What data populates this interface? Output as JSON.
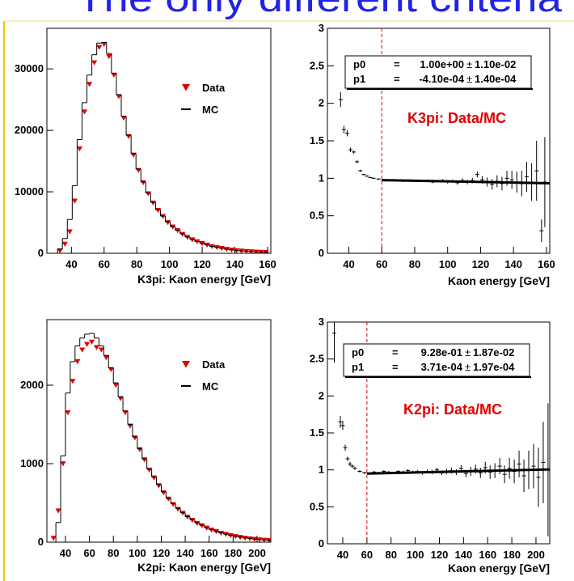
{
  "slide_title": "The only different criteria",
  "chart_data": [
    {
      "type": "distribution",
      "x_label": "K3pi: Kaon energy [GeV]",
      "xlim": [
        25,
        162
      ],
      "xticks": [
        40,
        60,
        80,
        100,
        120,
        140,
        160
      ],
      "ylim": [
        0,
        36600
      ],
      "yticks": [
        0,
        10000,
        20000,
        30000
      ],
      "x": [
        33,
        36,
        39,
        42,
        45,
        48,
        51,
        54,
        57,
        60,
        63,
        66,
        69,
        72,
        75,
        78,
        81,
        84,
        87,
        90,
        93,
        96,
        99,
        102,
        105,
        108,
        111,
        114,
        117,
        120,
        123,
        126,
        129,
        132,
        135,
        138,
        141,
        144,
        147,
        150,
        153,
        156,
        159
      ],
      "series": [
        {
          "name": "Data",
          "color": "#e00000",
          "style": "marker",
          "values": [
            400,
            1500,
            3500,
            8500,
            17000,
            23000,
            27500,
            31000,
            33500,
            34000,
            32000,
            29000,
            25500,
            22000,
            19000,
            16000,
            13500,
            11500,
            9700,
            8200,
            7000,
            6000,
            5000,
            4300,
            3700,
            3100,
            2600,
            2200,
            1900,
            1600,
            1350,
            1100,
            950,
            800,
            650,
            550,
            450,
            380,
            320,
            260,
            220,
            180,
            150
          ]
        },
        {
          "name": "MC",
          "color": "#000000",
          "style": "step",
          "values": [
            700,
            2400,
            5500,
            11000,
            18500,
            24500,
            29000,
            32300,
            34200,
            34300,
            32500,
            29300,
            25800,
            22300,
            19200,
            16200,
            13700,
            11600,
            9800,
            8300,
            7100,
            6050,
            5100,
            4350,
            3750,
            3150,
            2650,
            2250,
            1920,
            1620,
            1370,
            1120,
            960,
            810,
            660,
            560,
            460,
            385,
            325,
            265,
            225,
            185,
            155
          ]
        }
      ]
    },
    {
      "type": "ratio",
      "x_label": "Kaon energy [GeV]",
      "annotation": "K3pi: Data/MC",
      "annotation_color": "#e00000",
      "xlim": [
        27,
        162
      ],
      "xticks": [
        40,
        60,
        80,
        100,
        120,
        140,
        160
      ],
      "ylim": [
        0,
        3
      ],
      "yticks": [
        0,
        0.5,
        1,
        1.5,
        2,
        2.5,
        3
      ],
      "cut": 60,
      "cut_color": "#e00000",
      "fit": {
        "separator": "=",
        "plus_minus": "±",
        "params": [
          {
            "name": "p0",
            "value": {
              "value": 1.0,
              "label": "1.00e+00"
            },
            "error": {
              "value": 0.011,
              "label": "1.10e-02"
            }
          },
          {
            "name": "p1",
            "value": {
              "value": -0.00041,
              "label": "-4.10e-04"
            },
            "error": {
              "value": 0.00014,
              "label": "1.40e-04"
            }
          }
        ]
      },
      "x": [
        35,
        37,
        39,
        41,
        43,
        45,
        47,
        49,
        51,
        53,
        55,
        58,
        61,
        64,
        67,
        70,
        73,
        76,
        79,
        82,
        85,
        88,
        91,
        94,
        97,
        100,
        103,
        106,
        109,
        112,
        115,
        118,
        121,
        124,
        127,
        130,
        133,
        136,
        139,
        142,
        145,
        148,
        151,
        154,
        157,
        159
      ],
      "values": [
        2.05,
        1.65,
        1.6,
        1.38,
        1.35,
        1.22,
        1.1,
        1.05,
        1.03,
        1.01,
        1.0,
        0.99,
        0.98,
        0.97,
        0.98,
        0.97,
        0.96,
        0.97,
        0.96,
        0.97,
        0.96,
        0.97,
        0.95,
        0.96,
        0.97,
        0.95,
        0.96,
        0.94,
        0.97,
        0.95,
        0.97,
        1.05,
        0.98,
        0.95,
        0.92,
        0.96,
        0.93,
        1.0,
        0.98,
        0.95,
        0.93,
        1.02,
        0.95,
        1.1,
        0.3,
        0.95
      ],
      "errors": [
        0.1,
        0.05,
        0.04,
        0.03,
        0.02,
        0.02,
        0.015,
        0.01,
        0.01,
        0.01,
        0.01,
        0.01,
        0.01,
        0.01,
        0.01,
        0.01,
        0.01,
        0.01,
        0.01,
        0.01,
        0.01,
        0.015,
        0.015,
        0.015,
        0.02,
        0.02,
        0.02,
        0.025,
        0.03,
        0.03,
        0.035,
        0.04,
        0.05,
        0.06,
        0.07,
        0.08,
        0.09,
        0.1,
        0.12,
        0.14,
        0.17,
        0.2,
        0.25,
        0.4,
        0.15,
        0.6
      ]
    },
    {
      "type": "distribution",
      "x_label": "K2pi: Kaon energy [GeV]",
      "xlim": [
        24.5,
        211.5
      ],
      "xticks": [
        40,
        60,
        80,
        100,
        120,
        140,
        160,
        180,
        200
      ],
      "ylim": [
        0,
        2835
      ],
      "yticks": [
        0,
        1000,
        2000
      ],
      "x": [
        30,
        34,
        38,
        42,
        46,
        50,
        54,
        58,
        62,
        66,
        70,
        74,
        78,
        82,
        86,
        90,
        94,
        98,
        102,
        106,
        110,
        114,
        118,
        122,
        126,
        130,
        134,
        138,
        142,
        146,
        150,
        154,
        158,
        162,
        166,
        170,
        174,
        178,
        182,
        186,
        190,
        194,
        198,
        202,
        206,
        210
      ],
      "series": [
        {
          "name": "Data",
          "color": "#e00000",
          "style": "marker",
          "values": [
            50,
            400,
            1000,
            1650,
            2050,
            2300,
            2450,
            2520,
            2550,
            2480,
            2450,
            2350,
            2200,
            2000,
            1830,
            1650,
            1480,
            1330,
            1180,
            1050,
            920,
            820,
            720,
            630,
            550,
            480,
            420,
            370,
            320,
            280,
            240,
            210,
            180,
            155,
            135,
            115,
            100,
            85,
            72,
            62,
            52,
            44,
            37,
            31,
            26,
            22
          ]
        },
        {
          "name": "MC",
          "color": "#000000",
          "style": "step",
          "values": [
            0,
            250,
            1100,
            1900,
            2300,
            2500,
            2600,
            2650,
            2660,
            2600,
            2500,
            2380,
            2220,
            2030,
            1850,
            1670,
            1500,
            1340,
            1190,
            1060,
            930,
            830,
            730,
            640,
            560,
            490,
            430,
            375,
            325,
            285,
            245,
            215,
            185,
            160,
            138,
            118,
            102,
            88,
            75,
            64,
            54,
            46,
            39,
            33,
            28,
            24
          ]
        }
      ]
    },
    {
      "type": "ratio",
      "x_label": "Kaon energy [GeV]",
      "annotation": "K2pi: Data/MC",
      "annotation_color": "#e00000",
      "xlim": [
        27.3,
        211.4
      ],
      "xticks": [
        40,
        60,
        80,
        100,
        120,
        140,
        160,
        180,
        200
      ],
      "ylim": [
        0,
        3
      ],
      "yticks": [
        0,
        0.5,
        1,
        1.5,
        2,
        2.5,
        3
      ],
      "cut": 60,
      "cut_color": "#e00000",
      "fit": {
        "separator": "=",
        "plus_minus": "±",
        "params": [
          {
            "name": "p0",
            "value": {
              "value": 0.928,
              "label": "9.28e-01"
            },
            "error": {
              "value": 0.0187,
              "label": "1.87e-02"
            }
          },
          {
            "name": "p1",
            "value": {
              "value": 0.000371,
              "label": "3.71e-04"
            },
            "error": {
              "value": 0.000197,
              "label": "1.97e-04"
            }
          }
        ]
      },
      "x": [
        33,
        38,
        40,
        42,
        44,
        46,
        48,
        50,
        54,
        58,
        62,
        66,
        70,
        74,
        78,
        82,
        86,
        90,
        94,
        98,
        102,
        106,
        110,
        114,
        118,
        122,
        126,
        130,
        134,
        138,
        142,
        146,
        150,
        154,
        158,
        162,
        166,
        170,
        174,
        178,
        182,
        186,
        190,
        194,
        198,
        202,
        206,
        210
      ],
      "values": [
        2.85,
        1.65,
        1.6,
        1.3,
        1.15,
        1.08,
        1.05,
        1.02,
        0.98,
        0.96,
        0.95,
        0.97,
        0.96,
        0.98,
        0.97,
        0.96,
        0.98,
        0.97,
        0.99,
        0.97,
        0.98,
        0.96,
        0.98,
        0.97,
        1.0,
        0.96,
        0.98,
        0.99,
        0.97,
        1.02,
        0.95,
        0.98,
        1.01,
        0.96,
        1.03,
        0.97,
        0.99,
        1.05,
        0.94,
        1.02,
        0.98,
        1.08,
        0.92,
        1.0,
        1.05,
        0.9,
        1.1,
        1.0
      ],
      "errors": [
        0.4,
        0.08,
        0.06,
        0.04,
        0.03,
        0.03,
        0.02,
        0.02,
        0.015,
        0.015,
        0.015,
        0.015,
        0.015,
        0.015,
        0.015,
        0.015,
        0.015,
        0.02,
        0.02,
        0.02,
        0.02,
        0.025,
        0.025,
        0.03,
        0.03,
        0.03,
        0.035,
        0.04,
        0.04,
        0.045,
        0.05,
        0.06,
        0.06,
        0.07,
        0.08,
        0.09,
        0.1,
        0.11,
        0.12,
        0.14,
        0.16,
        0.18,
        0.22,
        0.26,
        0.3,
        0.4,
        0.55,
        0.9
      ]
    }
  ]
}
